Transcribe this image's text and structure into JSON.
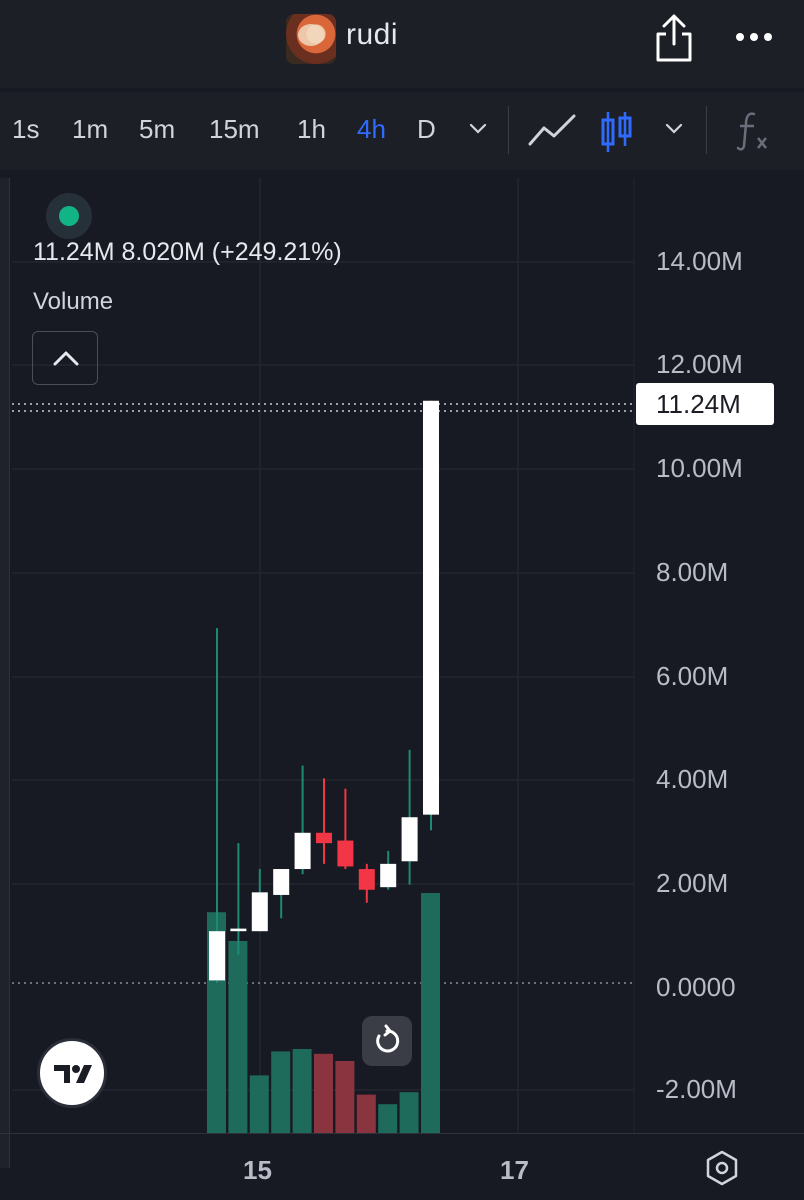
{
  "header": {
    "token_name": "rudi",
    "avatar_icon": "token-avatar",
    "share_icon": "share-icon",
    "more_icon": "more-dots-icon"
  },
  "toolbar": {
    "timeframes": [
      "1s",
      "1m",
      "5m",
      "15m",
      "1h",
      "4h",
      "D"
    ],
    "active_timeframe": "4h",
    "accent_color": "#2f6bff",
    "icons": [
      "chevron-down-icon",
      "line-chart-icon",
      "candlestick-icon",
      "chevron-down-icon",
      "indicators-fx-icon"
    ]
  },
  "legend": {
    "status_color": "#12b486",
    "values": "11.24M  8.020M (+249.21%)",
    "indicator": "Volume"
  },
  "price_axis": {
    "labels": [
      "14.00M",
      "12.00M",
      "10.00M",
      "8.00M",
      "6.00M",
      "4.00M",
      "2.00M",
      "0.0000",
      "-2.00M"
    ],
    "last_price": "11.24M"
  },
  "time_axis": {
    "labels": [
      "15",
      "17"
    ]
  },
  "chart_data": {
    "type": "candlestick",
    "y_unit": "M",
    "ylim": [
      -2.9,
      16.0
    ],
    "up_color": "#ffffff",
    "down_color": "#f23645",
    "candles": [
      {
        "open": 0.05,
        "high": 6.85,
        "low": 0.0,
        "close": 1.0
      },
      {
        "open": 1.0,
        "high": 2.7,
        "low": 0.55,
        "close": 1.05
      },
      {
        "open": 1.0,
        "high": 2.2,
        "low": 1.0,
        "close": 1.75
      },
      {
        "open": 1.7,
        "high": 2.2,
        "low": 1.25,
        "close": 2.2
      },
      {
        "open": 2.2,
        "high": 4.2,
        "low": 2.1,
        "close": 2.9
      },
      {
        "open": 2.9,
        "high": 3.95,
        "low": 2.3,
        "close": 2.7
      },
      {
        "open": 2.75,
        "high": 3.75,
        "low": 2.2,
        "close": 2.25
      },
      {
        "open": 2.2,
        "high": 2.3,
        "low": 1.55,
        "close": 1.8
      },
      {
        "open": 1.85,
        "high": 2.55,
        "low": 1.8,
        "close": 2.3
      },
      {
        "open": 2.35,
        "high": 4.5,
        "low": 1.9,
        "close": 3.2
      },
      {
        "open": 3.25,
        "high": 11.24,
        "low": 2.95,
        "close": 11.24
      }
    ],
    "volume_colors": {
      "up": "#1e6b5c",
      "down": "#8a3440"
    },
    "volume": [
      {
        "value": 0.92,
        "dir": "up"
      },
      {
        "value": 0.8,
        "dir": "up"
      },
      {
        "value": 0.24,
        "dir": "up"
      },
      {
        "value": 0.34,
        "dir": "up"
      },
      {
        "value": 0.35,
        "dir": "up"
      },
      {
        "value": 0.33,
        "dir": "down"
      },
      {
        "value": 0.3,
        "dir": "down"
      },
      {
        "value": 0.16,
        "dir": "down"
      },
      {
        "value": 0.12,
        "dir": "up"
      },
      {
        "value": 0.17,
        "dir": "up"
      },
      {
        "value": 1.0,
        "dir": "up"
      }
    ]
  }
}
